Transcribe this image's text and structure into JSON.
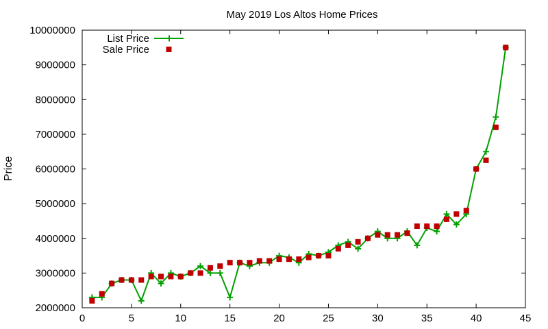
{
  "chart_data": {
    "type": "line",
    "title": "May 2019 Los Altos Home Prices",
    "xlabel": "",
    "ylabel": "Price",
    "xlim": [
      0,
      45
    ],
    "ylim": [
      2000000,
      10000000
    ],
    "x_ticks": [
      0,
      5,
      10,
      15,
      20,
      25,
      30,
      35,
      40,
      45
    ],
    "y_ticks": [
      2000000,
      3000000,
      4000000,
      5000000,
      6000000,
      7000000,
      8000000,
      9000000,
      10000000
    ],
    "grid": false,
    "legend_position": "top-left",
    "x": [
      1,
      2,
      3,
      4,
      5,
      6,
      7,
      8,
      9,
      10,
      11,
      12,
      13,
      14,
      15,
      16,
      17,
      18,
      19,
      20,
      21,
      22,
      23,
      24,
      25,
      26,
      27,
      28,
      29,
      30,
      31,
      32,
      33,
      34,
      35,
      36,
      37,
      38,
      39,
      40,
      41,
      42,
      43
    ],
    "series": [
      {
        "name": "List Price",
        "style": "line-plus",
        "color": "#00a000",
        "values": [
          2300000,
          2300000,
          2700000,
          2800000,
          2800000,
          2200000,
          3000000,
          2700000,
          3000000,
          2900000,
          3000000,
          3200000,
          3000000,
          3000000,
          2300000,
          3300000,
          3200000,
          3300000,
          3300000,
          3500000,
          3450000,
          3300000,
          3550000,
          3500000,
          3600000,
          3800000,
          3900000,
          3700000,
          4000000,
          4200000,
          4000000,
          4000000,
          4200000,
          3800000,
          4300000,
          4200000,
          4700000,
          4400000,
          4700000,
          6000000,
          6500000,
          7500000,
          9500000
        ]
      },
      {
        "name": "Sale Price",
        "style": "square",
        "color": "#c00000",
        "values": [
          2200000,
          2400000,
          2700000,
          2800000,
          2800000,
          2800000,
          2900000,
          2900000,
          2900000,
          2900000,
          3000000,
          3000000,
          3150000,
          3200000,
          3300000,
          3300000,
          3300000,
          3350000,
          3350000,
          3400000,
          3400000,
          3400000,
          3450000,
          3500000,
          3500000,
          3700000,
          3800000,
          3900000,
          4000000,
          4100000,
          4100000,
          4100000,
          4150000,
          4350000,
          4350000,
          4350000,
          4550000,
          4700000,
          4800000,
          6000000,
          6250000,
          7200000,
          9500000
        ]
      }
    ]
  }
}
